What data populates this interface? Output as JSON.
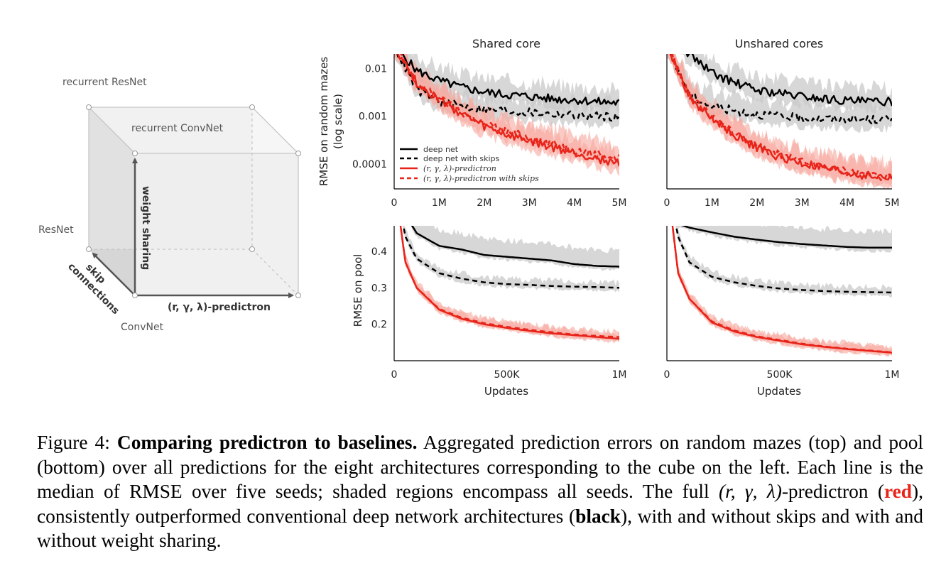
{
  "cube": {
    "labels": {
      "recurrent_resnet": "recurrent ResNet",
      "recurrent_convnet": "recurrent ConvNet",
      "resnet": "ResNet",
      "convnet": "ConvNet",
      "weight_sharing": "weight sharing",
      "skip": "skip",
      "connections": "connections",
      "predictron": "(r, γ, λ)-predictron"
    }
  },
  "colors": {
    "red": "#e8241a",
    "red_band": "#f7a89f",
    "grey_band": "#c9c9c9",
    "black": "#000000"
  },
  "titles": [
    "Shared core",
    "Unshared cores"
  ],
  "ylabels": {
    "top_line1": "RMSE on random mazes",
    "top_line2": "(log scale)",
    "bottom": "RMSE on pool"
  },
  "xlabel": "Updates",
  "legend": [
    "deep net",
    "deep net with skips",
    "(r, γ, λ)-predictron",
    "(r, γ, λ)-predictron with skips"
  ],
  "chart_data": [
    {
      "type": "line",
      "title": "Shared core",
      "ylabel": "RMSE on random mazes (log scale)",
      "yscale": "log",
      "xlim": [
        0,
        5000000
      ],
      "ylim": [
        3e-05,
        0.02
      ],
      "xticks": [
        "0",
        "1M",
        "2M",
        "3M",
        "4M",
        "5M"
      ],
      "yticks": [
        "0.01",
        "0.001",
        "0.0001"
      ],
      "legend_position": "lower-left",
      "x": [
        0,
        500000,
        1000000,
        1500000,
        2000000,
        2500000,
        3000000,
        3500000,
        4000000,
        4500000,
        5000000
      ],
      "series": [
        {
          "name": "deep net",
          "style": "solid",
          "color": "#000000",
          "values": [
            0.03,
            0.009,
            0.0055,
            0.004,
            0.0032,
            0.0028,
            0.0026,
            0.0023,
            0.0022,
            0.002,
            0.0019
          ]
        },
        {
          "name": "deep net with skips",
          "style": "dashed",
          "color": "#000000",
          "values": [
            0.03,
            0.0035,
            0.002,
            0.0016,
            0.0014,
            0.0013,
            0.0012,
            0.0011,
            0.00105,
            0.001,
            0.00095
          ]
        },
        {
          "name": "(r, γ, λ)-predictron",
          "style": "solid",
          "color": "#e8241a",
          "values": [
            0.03,
            0.005,
            0.0022,
            0.0011,
            0.0006,
            0.0004,
            0.0003,
            0.00022,
            0.00017,
            0.00013,
            0.0001
          ]
        },
        {
          "name": "(r, γ, λ)-predictron with skips",
          "style": "dashed",
          "color": "#e8241a",
          "values": [
            0.03,
            0.0048,
            0.0023,
            0.0012,
            0.0007,
            0.00048,
            0.00035,
            0.00027,
            0.0002,
            0.00016,
            0.00013
          ]
        }
      ]
    },
    {
      "type": "line",
      "title": "Unshared cores",
      "yscale": "log",
      "xlim": [
        0,
        5000000
      ],
      "ylim": [
        3e-05,
        0.02
      ],
      "xticks": [
        "0",
        "1M",
        "2M",
        "3M",
        "4M",
        "5M"
      ],
      "x": [
        0,
        500000,
        1000000,
        1500000,
        2000000,
        2500000,
        3000000,
        3500000,
        4000000,
        4500000,
        5000000
      ],
      "series": [
        {
          "name": "deep net",
          "style": "solid",
          "color": "#000000",
          "values": [
            0.05,
            0.02,
            0.008,
            0.005,
            0.0035,
            0.003,
            0.0026,
            0.0023,
            0.0021,
            0.002,
            0.002
          ]
        },
        {
          "name": "deep net with skips",
          "style": "dashed",
          "color": "#000000",
          "values": [
            0.03,
            0.0028,
            0.0016,
            0.0013,
            0.0011,
            0.001,
            0.0009,
            0.00088,
            0.00086,
            0.00084,
            0.00083
          ]
        },
        {
          "name": "(r, γ, λ)-predictron",
          "style": "solid",
          "color": "#e8241a",
          "values": [
            0.03,
            0.0025,
            0.0009,
            0.0004,
            0.00022,
            0.00014,
            0.0001,
            8e-05,
            6.5e-05,
            5.5e-05,
            5e-05
          ]
        },
        {
          "name": "(r, γ, λ)-predictron with skips",
          "style": "dashed",
          "color": "#e8241a",
          "values": [
            0.03,
            0.0026,
            0.00095,
            0.00043,
            0.00024,
            0.00015,
            0.00011,
            8.5e-05,
            7e-05,
            6e-05,
            5.2e-05
          ]
        }
      ]
    },
    {
      "type": "line",
      "ylabel": "RMSE on pool",
      "xlabel": "Updates",
      "xlim": [
        0,
        1000000
      ],
      "ylim": [
        0.1,
        0.47
      ],
      "xticks": [
        "0",
        "500K",
        "1M"
      ],
      "yticks": [
        "0.2",
        "0.3",
        "0.4"
      ],
      "x": [
        0,
        50000,
        100000,
        200000,
        300000,
        400000,
        500000,
        600000,
        700000,
        800000,
        900000,
        1000000
      ],
      "series": [
        {
          "name": "deep net",
          "style": "solid",
          "color": "#000000",
          "values": [
            0.62,
            0.5,
            0.45,
            0.415,
            0.405,
            0.39,
            0.385,
            0.38,
            0.375,
            0.365,
            0.36,
            0.358
          ]
        },
        {
          "name": "deep net with skips",
          "style": "dashed",
          "color": "#000000",
          "values": [
            0.6,
            0.44,
            0.38,
            0.34,
            0.325,
            0.315,
            0.31,
            0.308,
            0.305,
            0.303,
            0.302,
            0.3
          ]
        },
        {
          "name": "(r, γ, λ)-predictron",
          "style": "solid",
          "color": "#e8241a",
          "values": [
            0.6,
            0.37,
            0.3,
            0.24,
            0.215,
            0.2,
            0.19,
            0.182,
            0.175,
            0.17,
            0.165,
            0.16
          ]
        },
        {
          "name": "(r, γ, λ)-predictron with skips",
          "style": "dashed",
          "color": "#e8241a",
          "values": [
            0.6,
            0.37,
            0.3,
            0.242,
            0.218,
            0.203,
            0.193,
            0.185,
            0.178,
            0.172,
            0.168,
            0.165
          ]
        }
      ]
    },
    {
      "type": "line",
      "xlabel": "Updates",
      "xlim": [
        0,
        1000000
      ],
      "ylim": [
        0.1,
        0.47
      ],
      "xticks": [
        "0",
        "500K",
        "1M"
      ],
      "x": [
        0,
        50000,
        100000,
        200000,
        300000,
        400000,
        500000,
        600000,
        700000,
        800000,
        900000,
        1000000
      ],
      "series": [
        {
          "name": "deep net",
          "style": "solid",
          "color": "#000000",
          "values": [
            0.55,
            0.475,
            0.465,
            0.452,
            0.44,
            0.432,
            0.425,
            0.42,
            0.416,
            0.412,
            0.41,
            0.41
          ]
        },
        {
          "name": "deep net with skips",
          "style": "dashed",
          "color": "#000000",
          "values": [
            0.6,
            0.44,
            0.37,
            0.33,
            0.315,
            0.305,
            0.298,
            0.294,
            0.291,
            0.289,
            0.288,
            0.287
          ]
        },
        {
          "name": "(r, γ, λ)-predictron",
          "style": "solid",
          "color": "#e8241a",
          "values": [
            0.6,
            0.34,
            0.27,
            0.205,
            0.18,
            0.165,
            0.155,
            0.145,
            0.138,
            0.132,
            0.127,
            0.122
          ]
        },
        {
          "name": "(r, γ, λ)-predictron with skips",
          "style": "dashed",
          "color": "#e8241a",
          "values": [
            0.6,
            0.34,
            0.27,
            0.208,
            0.183,
            0.167,
            0.157,
            0.147,
            0.139,
            0.133,
            0.128,
            0.123
          ]
        }
      ]
    }
  ],
  "caption": {
    "prefix": "Figure 4: ",
    "bold_title": "Comparing predictron to baselines.",
    "text1": " Aggregated prediction errors on random mazes (top) and pool (bottom) over all predictions for the eight architectures corresponding to the cube on the left. Each line is the median of RMSE over five seeds; shaded regions encompass all seeds. The full ",
    "math": "(r, γ, λ)",
    "text2": "-predictron (",
    "red_word": "red",
    "text3": "), consistently outperformed conventional deep network architectures (",
    "black_word": "black",
    "text4": "), with and without skips and with and without weight sharing."
  }
}
